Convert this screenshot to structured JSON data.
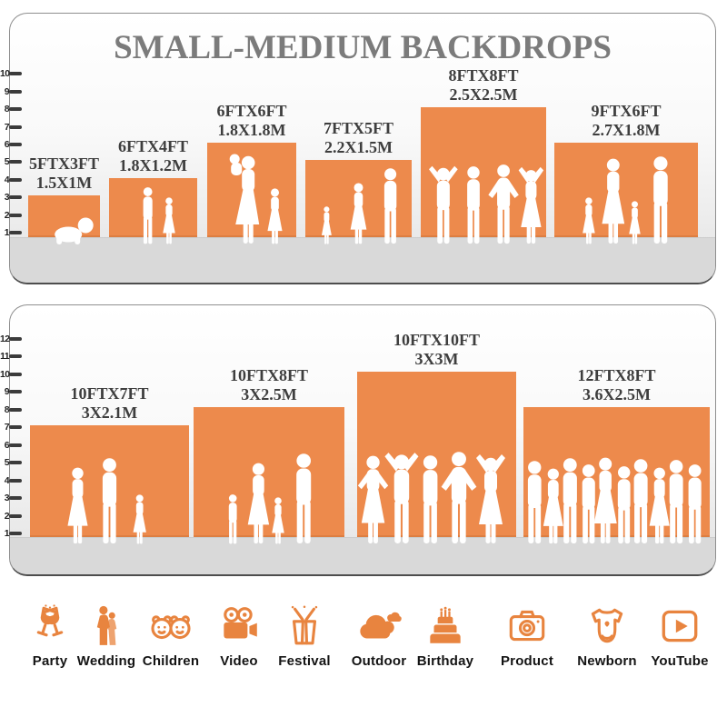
{
  "title": "SMALL-MEDIUM BACKDROPS",
  "colors": {
    "bar_orange": "#ED8A4C",
    "icon_orange": "#E8843F",
    "title_gray": "#7B7B7B",
    "label_dark": "#3E3E3E",
    "floor_gray": "#D9D9D9"
  },
  "panels": [
    {
      "scale_max": 10,
      "scale_unit": "ft",
      "bars": [
        {
          "size_ft": "5FTX3FT",
          "size_m": "1.5X1M",
          "width_ft": 5,
          "height_ft": 3,
          "people": [
            "baby"
          ]
        },
        {
          "size_ft": "6FTX4FT",
          "size_m": "1.8X1.2M",
          "width_ft": 6,
          "height_ft": 4,
          "people": [
            "boy",
            "girl"
          ]
        },
        {
          "size_ft": "6FTX6FT",
          "size_m": "1.8X1.8M",
          "width_ft": 6,
          "height_ft": 6,
          "people": [
            "woman-baby",
            "girl"
          ]
        },
        {
          "size_ft": "7FTX5FT",
          "size_m": "2.2X1.5M",
          "width_ft": 7,
          "height_ft": 5,
          "people": [
            "girl",
            "woman",
            "man"
          ]
        },
        {
          "size_ft": "8FTX8FT",
          "size_m": "2.5X2.5M",
          "width_ft": 8,
          "height_ft": 8,
          "people": [
            "man-armsup",
            "man",
            "man-hips",
            "woman-armsup"
          ]
        },
        {
          "size_ft": "9FTX6FT",
          "size_m": "2.7X1.8M",
          "width_ft": 9,
          "height_ft": 6,
          "people": [
            "girl",
            "woman",
            "girl",
            "man"
          ]
        }
      ]
    },
    {
      "scale_max": 12,
      "scale_unit": "ft",
      "bars": [
        {
          "size_ft": "10FTX7FT",
          "size_m": "3X2.1M",
          "width_ft": 10,
          "height_ft": 7,
          "people": [
            "woman",
            "man",
            "girl"
          ]
        },
        {
          "size_ft": "10FTX8FT",
          "size_m": "3X2.5M",
          "width_ft": 10,
          "height_ft": 8,
          "people": [
            "boy",
            "woman",
            "girl",
            "man"
          ]
        },
        {
          "size_ft": "10FTX10FT",
          "size_m": "3X3M",
          "width_ft": 10,
          "height_ft": 10,
          "people": [
            "woman-hips",
            "man-armsup",
            "man",
            "man-hips",
            "woman-armsup"
          ]
        },
        {
          "size_ft": "12FTX8FT",
          "size_m": "3.6X2.5M",
          "width_ft": 12,
          "height_ft": 8,
          "people": [
            "man",
            "woman",
            "man",
            "man",
            "woman",
            "man",
            "man",
            "woman",
            "man",
            "man"
          ]
        }
      ]
    }
  ],
  "categories": [
    {
      "name": "party",
      "label": "Party"
    },
    {
      "name": "wedding",
      "label": "Wedding"
    },
    {
      "name": "children",
      "label": "Children"
    },
    {
      "name": "video",
      "label": "Video"
    },
    {
      "name": "festival",
      "label": "Festival"
    },
    {
      "name": "outdoor",
      "label": "Outdoor"
    },
    {
      "name": "birthday",
      "label": "Birthday"
    },
    {
      "name": "product",
      "label": "Product"
    },
    {
      "name": "newborn",
      "label": "Newborn"
    },
    {
      "name": "youtube",
      "label": "YouTube"
    }
  ]
}
